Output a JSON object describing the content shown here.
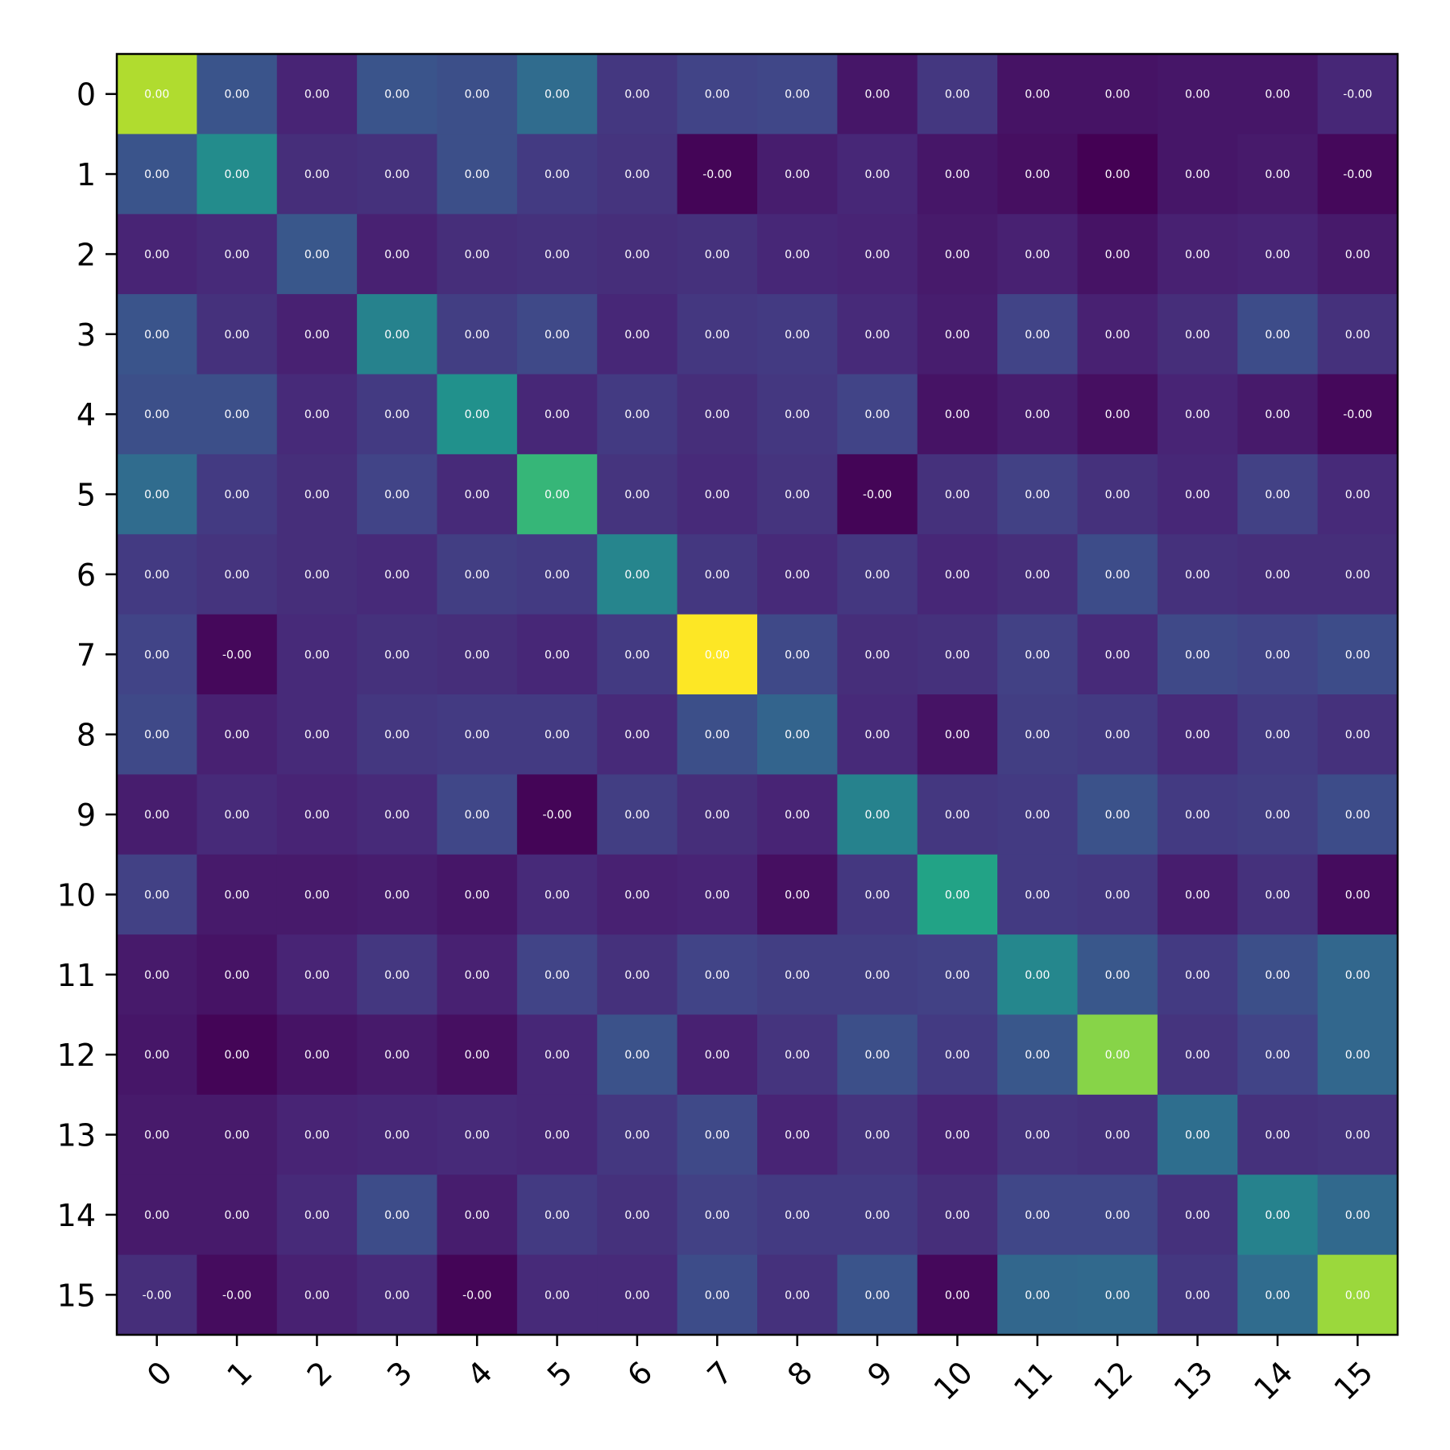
{
  "chart_data": {
    "type": "heatmap",
    "title": "",
    "xlabel": "",
    "ylabel": "",
    "grid": false,
    "colormap": "viridis",
    "vmin": 0.0,
    "vmax": 1.0,
    "x_tick_labels": [
      "0",
      "1",
      "2",
      "3",
      "4",
      "5",
      "6",
      "7",
      "8",
      "9",
      "10",
      "11",
      "12",
      "13",
      "14",
      "15"
    ],
    "y_tick_labels": [
      "0",
      "1",
      "2",
      "3",
      "4",
      "5",
      "6",
      "7",
      "8",
      "9",
      "10",
      "11",
      "12",
      "13",
      "14",
      "15"
    ],
    "intensity": [
      [
        0.88,
        0.26,
        0.1,
        0.26,
        0.24,
        0.35,
        0.16,
        0.2,
        0.21,
        0.06,
        0.16,
        0.05,
        0.05,
        0.06,
        0.06,
        0.11
      ],
      [
        0.26,
        0.48,
        0.13,
        0.14,
        0.24,
        0.17,
        0.15,
        0.01,
        0.08,
        0.11,
        0.06,
        0.04,
        0.0,
        0.06,
        0.07,
        0.02
      ],
      [
        0.1,
        0.12,
        0.27,
        0.09,
        0.13,
        0.14,
        0.13,
        0.14,
        0.11,
        0.1,
        0.07,
        0.09,
        0.05,
        0.09,
        0.1,
        0.07
      ],
      [
        0.26,
        0.14,
        0.09,
        0.44,
        0.18,
        0.22,
        0.11,
        0.16,
        0.17,
        0.12,
        0.08,
        0.2,
        0.09,
        0.13,
        0.23,
        0.14
      ],
      [
        0.24,
        0.24,
        0.12,
        0.17,
        0.5,
        0.11,
        0.17,
        0.13,
        0.16,
        0.2,
        0.05,
        0.08,
        0.04,
        0.1,
        0.07,
        0.02
      ],
      [
        0.35,
        0.17,
        0.13,
        0.2,
        0.12,
        0.66,
        0.15,
        0.12,
        0.15,
        0.01,
        0.14,
        0.19,
        0.14,
        0.11,
        0.19,
        0.12
      ],
      [
        0.17,
        0.15,
        0.13,
        0.12,
        0.18,
        0.17,
        0.45,
        0.16,
        0.12,
        0.16,
        0.11,
        0.13,
        0.23,
        0.14,
        0.13,
        0.13
      ],
      [
        0.2,
        0.02,
        0.12,
        0.14,
        0.13,
        0.11,
        0.17,
        1.0,
        0.22,
        0.13,
        0.14,
        0.19,
        0.12,
        0.22,
        0.2,
        0.23
      ],
      [
        0.22,
        0.09,
        0.12,
        0.16,
        0.17,
        0.17,
        0.12,
        0.24,
        0.32,
        0.12,
        0.05,
        0.18,
        0.17,
        0.12,
        0.17,
        0.14
      ],
      [
        0.08,
        0.12,
        0.1,
        0.12,
        0.21,
        0.01,
        0.18,
        0.13,
        0.1,
        0.44,
        0.16,
        0.17,
        0.25,
        0.17,
        0.18,
        0.23
      ],
      [
        0.19,
        0.07,
        0.07,
        0.08,
        0.06,
        0.12,
        0.09,
        0.1,
        0.04,
        0.16,
        0.58,
        0.17,
        0.16,
        0.08,
        0.14,
        0.03
      ],
      [
        0.07,
        0.05,
        0.1,
        0.16,
        0.09,
        0.2,
        0.14,
        0.2,
        0.18,
        0.18,
        0.19,
        0.46,
        0.27,
        0.17,
        0.24,
        0.33
      ],
      [
        0.06,
        0.01,
        0.05,
        0.07,
        0.04,
        0.11,
        0.25,
        0.09,
        0.15,
        0.24,
        0.17,
        0.27,
        0.82,
        0.15,
        0.2,
        0.33
      ],
      [
        0.07,
        0.07,
        0.1,
        0.11,
        0.12,
        0.11,
        0.16,
        0.22,
        0.1,
        0.15,
        0.1,
        0.15,
        0.14,
        0.36,
        0.14,
        0.15
      ],
      [
        0.07,
        0.07,
        0.12,
        0.23,
        0.08,
        0.17,
        0.14,
        0.19,
        0.17,
        0.17,
        0.13,
        0.21,
        0.21,
        0.14,
        0.44,
        0.34
      ],
      [
        0.13,
        0.03,
        0.09,
        0.12,
        0.01,
        0.12,
        0.12,
        0.23,
        0.14,
        0.26,
        0.02,
        0.33,
        0.34,
        0.16,
        0.35,
        0.85
      ]
    ],
    "cell_labels": [
      [
        "0.00",
        "0.00",
        "0.00",
        "0.00",
        "0.00",
        "0.00",
        "0.00",
        "0.00",
        "0.00",
        "0.00",
        "0.00",
        "0.00",
        "0.00",
        "0.00",
        "0.00",
        "-0.00"
      ],
      [
        "0.00",
        "0.00",
        "0.00",
        "0.00",
        "0.00",
        "0.00",
        "0.00",
        "-0.00",
        "0.00",
        "0.00",
        "0.00",
        "0.00",
        "0.00",
        "0.00",
        "0.00",
        "-0.00"
      ],
      [
        "0.00",
        "0.00",
        "0.00",
        "0.00",
        "0.00",
        "0.00",
        "0.00",
        "0.00",
        "0.00",
        "0.00",
        "0.00",
        "0.00",
        "0.00",
        "0.00",
        "0.00",
        "0.00"
      ],
      [
        "0.00",
        "0.00",
        "0.00",
        "0.00",
        "0.00",
        "0.00",
        "0.00",
        "0.00",
        "0.00",
        "0.00",
        "0.00",
        "0.00",
        "0.00",
        "0.00",
        "0.00",
        "0.00"
      ],
      [
        "0.00",
        "0.00",
        "0.00",
        "0.00",
        "0.00",
        "0.00",
        "0.00",
        "0.00",
        "0.00",
        "0.00",
        "0.00",
        "0.00",
        "0.00",
        "0.00",
        "0.00",
        "-0.00"
      ],
      [
        "0.00",
        "0.00",
        "0.00",
        "0.00",
        "0.00",
        "0.00",
        "0.00",
        "0.00",
        "0.00",
        "-0.00",
        "0.00",
        "0.00",
        "0.00",
        "0.00",
        "0.00",
        "0.00"
      ],
      [
        "0.00",
        "0.00",
        "0.00",
        "0.00",
        "0.00",
        "0.00",
        "0.00",
        "0.00",
        "0.00",
        "0.00",
        "0.00",
        "0.00",
        "0.00",
        "0.00",
        "0.00",
        "0.00"
      ],
      [
        "0.00",
        "-0.00",
        "0.00",
        "0.00",
        "0.00",
        "0.00",
        "0.00",
        "0.00",
        "0.00",
        "0.00",
        "0.00",
        "0.00",
        "0.00",
        "0.00",
        "0.00",
        "0.00"
      ],
      [
        "0.00",
        "0.00",
        "0.00",
        "0.00",
        "0.00",
        "0.00",
        "0.00",
        "0.00",
        "0.00",
        "0.00",
        "0.00",
        "0.00",
        "0.00",
        "0.00",
        "0.00",
        "0.00"
      ],
      [
        "0.00",
        "0.00",
        "0.00",
        "0.00",
        "0.00",
        "-0.00",
        "0.00",
        "0.00",
        "0.00",
        "0.00",
        "0.00",
        "0.00",
        "0.00",
        "0.00",
        "0.00",
        "0.00"
      ],
      [
        "0.00",
        "0.00",
        "0.00",
        "0.00",
        "0.00",
        "0.00",
        "0.00",
        "0.00",
        "0.00",
        "0.00",
        "0.00",
        "0.00",
        "0.00",
        "0.00",
        "0.00",
        "0.00"
      ],
      [
        "0.00",
        "0.00",
        "0.00",
        "0.00",
        "0.00",
        "0.00",
        "0.00",
        "0.00",
        "0.00",
        "0.00",
        "0.00",
        "0.00",
        "0.00",
        "0.00",
        "0.00",
        "0.00"
      ],
      [
        "0.00",
        "0.00",
        "0.00",
        "0.00",
        "0.00",
        "0.00",
        "0.00",
        "0.00",
        "0.00",
        "0.00",
        "0.00",
        "0.00",
        "0.00",
        "0.00",
        "0.00",
        "0.00"
      ],
      [
        "0.00",
        "0.00",
        "0.00",
        "0.00",
        "0.00",
        "0.00",
        "0.00",
        "0.00",
        "0.00",
        "0.00",
        "0.00",
        "0.00",
        "0.00",
        "0.00",
        "0.00",
        "0.00"
      ],
      [
        "0.00",
        "0.00",
        "0.00",
        "0.00",
        "0.00",
        "0.00",
        "0.00",
        "0.00",
        "0.00",
        "0.00",
        "0.00",
        "0.00",
        "0.00",
        "0.00",
        "0.00",
        "0.00"
      ],
      [
        "-0.00",
        "-0.00",
        "0.00",
        "0.00",
        "-0.00",
        "0.00",
        "0.00",
        "0.00",
        "0.00",
        "0.00",
        "0.00",
        "0.00",
        "0.00",
        "0.00",
        "0.00",
        "0.00"
      ]
    ]
  }
}
